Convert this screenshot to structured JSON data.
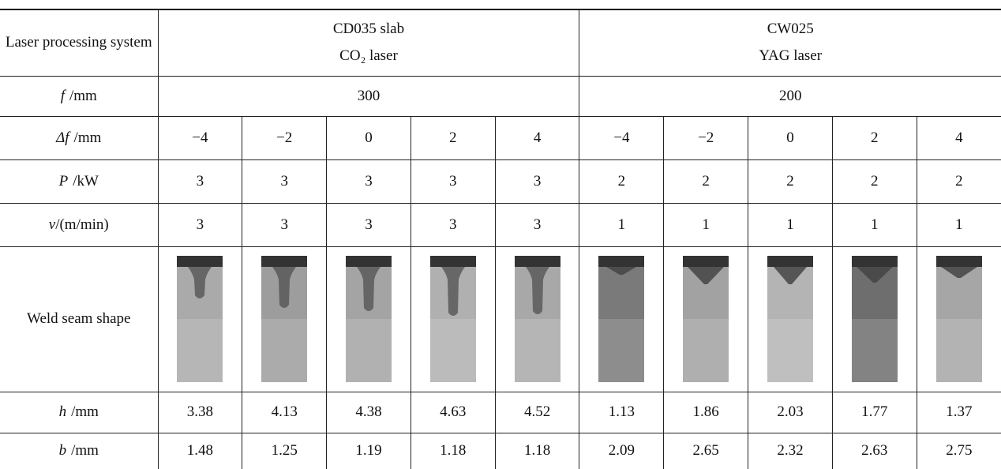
{
  "table": {
    "header": {
      "label": "Laser processing system",
      "groups": [
        {
          "name": "CD035 slab",
          "laser": "CO₂ laser"
        },
        {
          "name": "CW025",
          "laser": "YAG laser"
        }
      ]
    },
    "focal_length": {
      "symbol": "f",
      "unit": "/mm",
      "values": [
        "300",
        "200"
      ]
    },
    "rows": [
      {
        "symbol": "Δf",
        "unit": "/mm",
        "values": [
          "−4",
          "−2",
          "0",
          "2",
          "4",
          "−4",
          "−2",
          "0",
          "2",
          "4"
        ]
      },
      {
        "symbol": "P",
        "unit": "/kW",
        "values": [
          "3",
          "3",
          "3",
          "3",
          "3",
          "2",
          "2",
          "2",
          "2",
          "2"
        ]
      },
      {
        "symbol": "v",
        "unit": "/(m/min)",
        "values": [
          "3",
          "3",
          "3",
          "3",
          "3",
          "1",
          "1",
          "1",
          "1",
          "1"
        ]
      }
    ],
    "weld_label": "Weld seam shape",
    "results": [
      {
        "symbol": "h",
        "unit": "/mm",
        "values": [
          "3.38",
          "4.13",
          "4.38",
          "4.63",
          "4.52",
          "1.13",
          "1.86",
          "2.03",
          "1.77",
          "1.37"
        ]
      },
      {
        "symbol": "b",
        "unit": "/mm",
        "values": [
          "1.48",
          "1.25",
          "1.19",
          "1.18",
          "1.18",
          "2.09",
          "2.65",
          "2.32",
          "2.63",
          "2.75"
        ]
      }
    ]
  }
}
